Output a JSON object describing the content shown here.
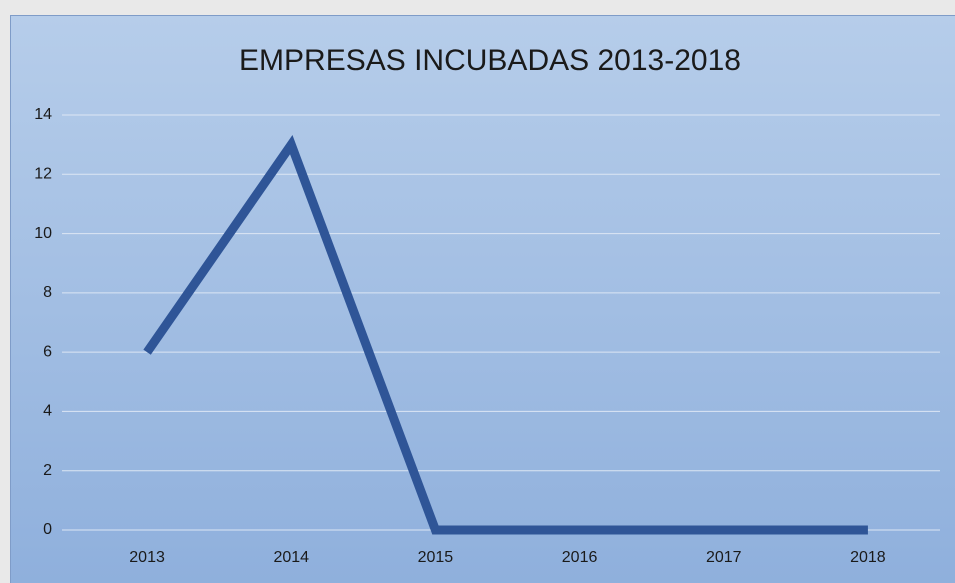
{
  "chart_data": {
    "type": "line",
    "title": "EMPRESAS INCUBADAS 2013-2018",
    "categories": [
      "2013",
      "2014",
      "2015",
      "2016",
      "2017",
      "2018"
    ],
    "values": [
      6,
      13,
      0,
      0,
      0,
      0
    ],
    "color": "#2f5597",
    "ylim": [
      0,
      14
    ],
    "yticks": [
      0,
      2,
      4,
      6,
      8,
      10,
      12,
      14
    ],
    "grid": true
  }
}
